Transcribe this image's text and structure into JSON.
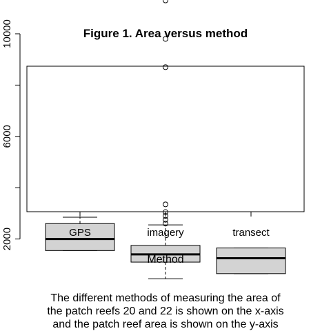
{
  "chart_data": {
    "type": "boxplot",
    "title": "Figure 1. Area versus method",
    "xlabel": "Method",
    "ylabel": "",
    "categories": [
      "GPS",
      "imagery",
      "transect"
    ],
    "ylim": [
      0,
      11500
    ],
    "yticks": [
      2000,
      4000,
      6000,
      8000,
      10000
    ],
    "ytick_labels": [
      "2000",
      "",
      "6000",
      "",
      "10000"
    ],
    "box_fill": "#d3d3d3",
    "boxes": [
      {
        "category": "GPS",
        "whisker_low": 1550,
        "q1": 1550,
        "median": 2000,
        "q3": 2600,
        "whisker_high": 2850,
        "outliers": []
      },
      {
        "category": "imagery",
        "whisker_low": 450,
        "q1": 1100,
        "median": 1400,
        "q3": 1750,
        "whisker_high": 2550,
        "outliers": [
          2600,
          2750,
          2900,
          3050,
          3350,
          8700,
          9800,
          11300
        ]
      },
      {
        "category": "transect",
        "whisker_low": 650,
        "q1": 650,
        "median": 1250,
        "q3": 1650,
        "whisker_high": 1650,
        "outliers": []
      }
    ]
  },
  "caption": {
    "lines": [
      "The different methods of measuring the area of",
      "the patch reefs 20 and 22 is shown on the x-axis",
      "and the patch reef area is shown on the y-axis"
    ]
  }
}
